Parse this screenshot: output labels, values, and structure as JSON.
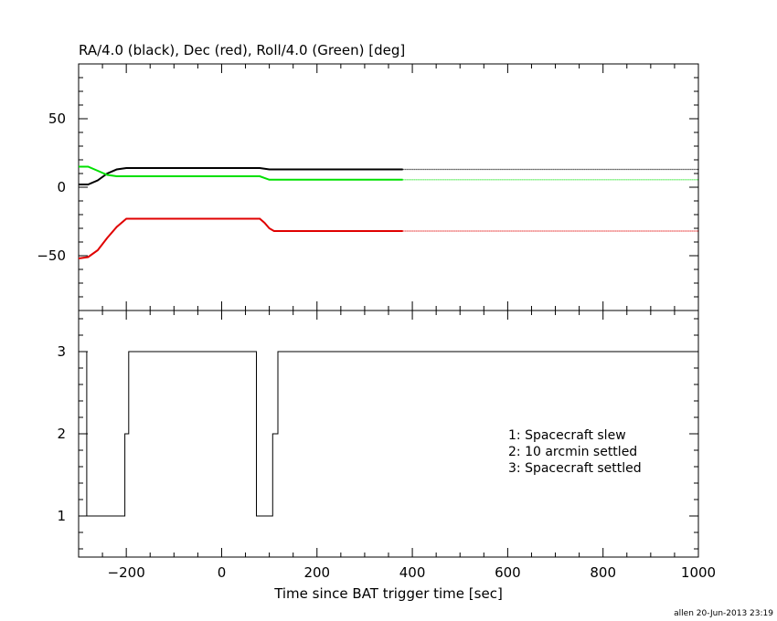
{
  "footer": "allen 20-Jun-2013 23:19",
  "chart_data": [
    {
      "type": "line",
      "title": "RA/4.0 (black), Dec (red), Roll/4.0 (Green) [deg]",
      "xlim": [
        -300,
        1000
      ],
      "ylim": [
        -90,
        90
      ],
      "yticks": [
        {
          "value": 50,
          "label": "50"
        },
        {
          "value": 0,
          "label": "0"
        },
        {
          "value": -50,
          "label": "−50"
        }
      ],
      "grid": false,
      "series": [
        {
          "color": "#000000",
          "solid_until": 380,
          "x": [
            -300,
            -280,
            -260,
            -240,
            -220,
            -200,
            0,
            80,
            100,
            380,
            1000
          ],
          "y": [
            2,
            2,
            5,
            10,
            13,
            14,
            14,
            14,
            13,
            13,
            13
          ]
        },
        {
          "color": "#00e000",
          "solid_until": 380,
          "x": [
            -300,
            -280,
            -260,
            -240,
            -220,
            -200,
            0,
            80,
            100,
            380,
            1000
          ],
          "y": [
            15,
            15,
            12,
            9,
            8,
            8,
            8,
            8,
            5.5,
            5.5,
            5.5
          ]
        },
        {
          "color": "#e00000",
          "solid_until": 380,
          "x": [
            -300,
            -280,
            -260,
            -240,
            -220,
            -200,
            0,
            80,
            90,
            100,
            110,
            380,
            1000
          ],
          "y": [
            -52,
            -51,
            -46,
            -37,
            -29,
            -23,
            -23,
            -23,
            -26,
            -30,
            -32,
            -32,
            -32
          ]
        }
      ]
    },
    {
      "type": "line",
      "xlabel": "Time since BAT trigger time [sec]",
      "xlim": [
        -300,
        1000
      ],
      "ylim": [
        0.5,
        3.5
      ],
      "xticks": [
        {
          "value": -200,
          "label": "−200"
        },
        {
          "value": 0,
          "label": "0"
        },
        {
          "value": 200,
          "label": "200"
        },
        {
          "value": 400,
          "label": "400"
        },
        {
          "value": 600,
          "label": "600"
        },
        {
          "value": 800,
          "label": "800"
        },
        {
          "value": 1000,
          "label": "1000"
        }
      ],
      "yticks": [
        {
          "value": 3,
          "label": "3"
        },
        {
          "value": 2,
          "label": "2"
        },
        {
          "value": 1,
          "label": "1"
        }
      ],
      "grid": false,
      "legend": [
        "1: Spacecraft slew",
        "2: 10 arcmin settled",
        "3: Spacecraft settled"
      ],
      "series": [
        {
          "color": "#000000",
          "x": [
            -300,
            -283,
            -283,
            -203,
            -203,
            -195,
            -195,
            73,
            73,
            107,
            107,
            118,
            118,
            1000
          ],
          "y": [
            3,
            3,
            1,
            1,
            2,
            2,
            3,
            3,
            1,
            1,
            2,
            2,
            3,
            3
          ]
        }
      ]
    }
  ]
}
